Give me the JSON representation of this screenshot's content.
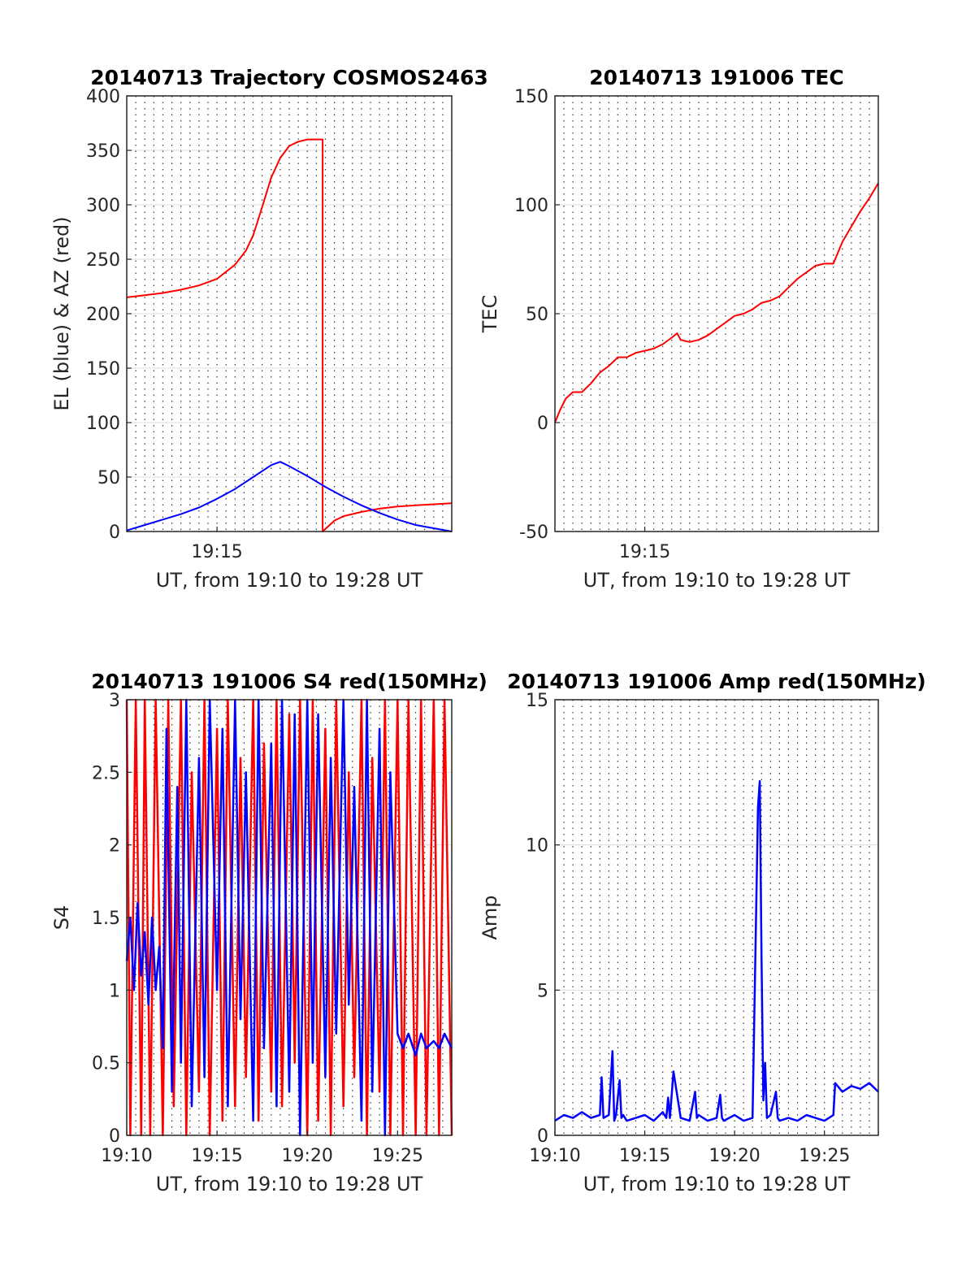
{
  "chart_data": [
    {
      "type": "line",
      "title": "20140713 Trajectory COSMOS2463",
      "xlabel": "UT, from 19:10 to 19:28 UT",
      "ylabel": "EL (blue) & AZ (red)",
      "xlim": [
        0,
        18
      ],
      "ylim": [
        0,
        400
      ],
      "xticks": [
        {
          "value": 5,
          "label": "19:15"
        }
      ],
      "yticks": [
        0,
        50,
        100,
        150,
        200,
        250,
        300,
        350,
        400
      ],
      "grid": "horizontal solid, vertical dotted every 0.5 min",
      "series": [
        {
          "name": "AZ",
          "color": "#ff0000",
          "x": [
            0.0,
            1.0,
            2.0,
            3.0,
            4.0,
            5.0,
            6.0,
            6.6,
            7.0,
            7.5,
            8.0,
            8.5,
            9.0,
            9.5,
            10.0,
            10.5,
            10.85,
            10.85,
            11.5,
            12.0,
            13.0,
            14.0,
            15.0,
            16.0,
            17.0,
            18.0
          ],
          "y": [
            215,
            217,
            219,
            222,
            226,
            232,
            245,
            258,
            272,
            298,
            325,
            343,
            354,
            358,
            360,
            360,
            360,
            0,
            10,
            14,
            18,
            21,
            23,
            24,
            25,
            26
          ]
        },
        {
          "name": "EL",
          "color": "#0000ff",
          "x": [
            0.0,
            1.0,
            2.0,
            3.0,
            4.0,
            5.0,
            6.0,
            7.0,
            8.0,
            8.5,
            9.0,
            10.0,
            11.0,
            12.0,
            13.0,
            14.0,
            15.0,
            16.0,
            17.0,
            18.0
          ],
          "y": [
            1,
            6,
            11,
            16,
            22,
            30,
            39,
            50,
            61,
            64,
            60,
            51,
            41,
            32,
            24,
            17,
            11,
            6,
            3,
            0
          ]
        }
      ]
    },
    {
      "type": "line",
      "title": "20140713 191006 TEC",
      "xlabel": "UT, from 19:10 to 19:28 UT",
      "ylabel": "TEC",
      "xlim": [
        0,
        18
      ],
      "ylim": [
        -50,
        150
      ],
      "xticks": [
        {
          "value": 5,
          "label": "19:15"
        }
      ],
      "yticks": [
        -50,
        0,
        50,
        100,
        150
      ],
      "grid": "horizontal solid, vertical dotted every 0.5 min",
      "series": [
        {
          "name": "TEC",
          "color": "#ff0000",
          "x": [
            0.0,
            0.3,
            0.6,
            1.0,
            1.5,
            2.0,
            2.5,
            3.0,
            3.5,
            4.0,
            4.5,
            5.0,
            5.5,
            6.0,
            6.5,
            6.8,
            7.0,
            7.5,
            8.0,
            8.5,
            9.0,
            9.5,
            10.0,
            10.5,
            11.0,
            11.5,
            12.0,
            12.5,
            13.0,
            13.5,
            14.0,
            14.5,
            15.0,
            15.5,
            16.0,
            16.5,
            17.0,
            17.5,
            18.0
          ],
          "y": [
            0,
            6,
            11,
            14,
            14,
            18,
            23,
            26,
            30,
            30,
            32,
            33,
            34,
            36,
            39,
            41,
            38,
            37,
            38,
            40,
            43,
            46,
            49,
            50,
            52,
            55,
            56,
            58,
            62,
            66,
            69,
            72,
            73,
            73,
            83,
            90,
            97,
            103,
            110
          ]
        }
      ]
    },
    {
      "type": "line",
      "title": "20140713 191006 S4 red(150MHz)",
      "xlabel": "UT, from 19:10 to 19:28 UT",
      "ylabel": "S4",
      "xlim": [
        0,
        18
      ],
      "ylim": [
        0,
        3
      ],
      "xticks": [
        {
          "value": 0,
          "label": "19:10"
        },
        {
          "value": 5,
          "label": "19:15"
        },
        {
          "value": 10,
          "label": "19:20"
        },
        {
          "value": 15,
          "label": "19:25"
        }
      ],
      "yticks": [
        0,
        0.5,
        1,
        1.5,
        2,
        2.5,
        3
      ],
      "grid": "horizontal solid, vertical dotted every 0.5 min",
      "series": [
        {
          "name": "red",
          "color": "#ff0000",
          "x": [
            0.0,
            0.2,
            0.5,
            0.8,
            1.0,
            1.3,
            1.6,
            2.0,
            2.3,
            2.6,
            3.0,
            3.3,
            3.6,
            4.0,
            4.3,
            4.6,
            5.0,
            5.3,
            5.6,
            6.0,
            6.3,
            6.6,
            7.0,
            7.3,
            7.6,
            8.0,
            8.3,
            8.6,
            9.0,
            9.3,
            9.6,
            10.0,
            10.3,
            10.6,
            11.0,
            11.3,
            11.6,
            12.0,
            12.3,
            12.6,
            13.0,
            13.3,
            13.6,
            14.0,
            14.3,
            14.6,
            15.0,
            15.3,
            15.6,
            16.0,
            16.3,
            16.6,
            17.0,
            17.3,
            17.6,
            18.0
          ],
          "y": [
            3,
            0,
            3,
            0,
            3,
            0,
            3,
            0,
            3,
            0.2,
            3,
            0,
            2.5,
            0.3,
            3,
            0,
            2.8,
            0.1,
            3,
            0.2,
            2.6,
            0.4,
            3,
            0.1,
            2.7,
            0.3,
            3,
            0.2,
            2.9,
            0.5,
            3,
            0,
            3,
            0.1,
            2.8,
            0,
            3,
            0.2,
            2.5,
            0.4,
            3,
            0,
            2.6,
            0.3,
            3,
            0,
            3,
            0,
            3,
            0,
            3,
            0,
            3,
            0,
            3,
            0
          ]
        },
        {
          "name": "blue",
          "color": "#0000ff",
          "x": [
            0.0,
            0.2,
            0.4,
            0.6,
            0.8,
            1.0,
            1.2,
            1.4,
            1.6,
            1.8,
            2.0,
            2.2,
            2.5,
            2.8,
            3.0,
            3.3,
            3.6,
            4.0,
            4.3,
            4.6,
            5.0,
            5.3,
            5.6,
            6.0,
            6.3,
            6.6,
            7.0,
            7.3,
            7.6,
            8.0,
            8.3,
            8.6,
            9.0,
            9.3,
            9.6,
            10.0,
            10.3,
            10.6,
            11.0,
            11.3,
            11.6,
            12.0,
            12.3,
            12.6,
            13.0,
            13.3,
            13.6,
            14.0,
            14.3,
            14.6,
            15.0,
            15.3,
            15.6,
            16.0,
            16.3,
            16.6,
            17.0,
            17.3,
            17.6,
            18.0
          ],
          "y": [
            1.2,
            1.5,
            1.0,
            1.6,
            1.1,
            1.4,
            0.9,
            1.5,
            1.0,
            1.3,
            0.6,
            2.8,
            0.3,
            2.4,
            0.5,
            3.0,
            0.2,
            2.6,
            0.4,
            3.0,
            1.0,
            2.8,
            0.2,
            3.0,
            0.8,
            2.5,
            0.1,
            3.0,
            0.6,
            2.7,
            0.2,
            3.0,
            0.3,
            2.9,
            0.0,
            3.0,
            0.5,
            2.9,
            0.4,
            2.6,
            0.7,
            3.0,
            0.9,
            2.4,
            0.1,
            3.0,
            0.3,
            2.8,
            0.0,
            2.5,
            0.7,
            0.6,
            0.7,
            0.55,
            0.7,
            0.6,
            0.65,
            0.6,
            0.7,
            0.6
          ]
        }
      ]
    },
    {
      "type": "line",
      "title": "20140713 191006 Amp red(150MHz)",
      "xlabel": "UT, from 19:10 to 19:28 UT",
      "ylabel": "Amp",
      "xlim": [
        0,
        18
      ],
      "ylim": [
        0,
        15
      ],
      "xticks": [
        {
          "value": 0,
          "label": "19:10"
        },
        {
          "value": 5,
          "label": "19:15"
        },
        {
          "value": 10,
          "label": "19:20"
        },
        {
          "value": 15,
          "label": "19:25"
        }
      ],
      "yticks": [
        0,
        5,
        10,
        15
      ],
      "grid": "horizontal solid, vertical dotted every 0.5 min",
      "series": [
        {
          "name": "Amp",
          "color": "#0000ff",
          "x": [
            0.0,
            0.5,
            1.0,
            1.5,
            2.0,
            2.5,
            2.6,
            2.7,
            3.0,
            3.2,
            3.3,
            3.4,
            3.6,
            3.7,
            3.8,
            4.0,
            4.5,
            5.0,
            5.5,
            6.0,
            6.2,
            6.3,
            6.4,
            6.6,
            7.0,
            7.5,
            7.8,
            7.9,
            8.0,
            8.5,
            9.0,
            9.2,
            9.3,
            9.4,
            10.0,
            10.5,
            11.0,
            11.3,
            11.4,
            11.5,
            11.6,
            11.7,
            11.8,
            12.0,
            12.3,
            12.4,
            12.5,
            13.0,
            13.5,
            14.0,
            14.5,
            15.0,
            15.5,
            15.6,
            16.0,
            16.5,
            17.0,
            17.5,
            18.0
          ],
          "y": [
            0.5,
            0.7,
            0.6,
            0.8,
            0.6,
            0.7,
            2.0,
            0.6,
            0.7,
            2.9,
            0.5,
            0.7,
            1.9,
            0.6,
            0.7,
            0.5,
            0.6,
            0.7,
            0.5,
            0.8,
            0.6,
            1.3,
            0.6,
            2.2,
            0.6,
            0.5,
            1.5,
            0.6,
            0.7,
            0.5,
            0.6,
            1.4,
            0.6,
            0.5,
            0.7,
            0.5,
            0.6,
            11.3,
            12.2,
            6.0,
            1.2,
            2.5,
            0.6,
            0.7,
            1.5,
            0.6,
            0.5,
            0.6,
            0.5,
            0.7,
            0.6,
            0.5,
            0.7,
            1.8,
            1.5,
            1.7,
            1.6,
            1.8,
            1.5
          ]
        }
      ]
    }
  ]
}
